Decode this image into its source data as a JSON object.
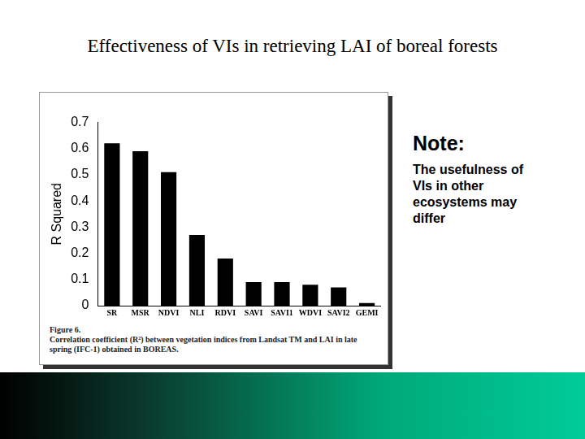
{
  "slide": {
    "title": "Effectiveness of VIs in retrieving LAI of boreal forests",
    "note_heading": "Note:",
    "note_text": "The usefulness of VIs in other ecosystems may differ"
  },
  "chart_data": {
    "type": "bar",
    "y_label": "R Squared",
    "categories": [
      "SR",
      "MSR",
      "NDVI",
      "NLI",
      "RDVI",
      "SAVI",
      "SAVI1",
      "WDVI",
      "SAVI2",
      "GEMI"
    ],
    "values": [
      0.62,
      0.59,
      0.51,
      0.27,
      0.18,
      0.09,
      0.09,
      0.08,
      0.07,
      0.01
    ],
    "color": "#000000",
    "ylim": [
      0,
      0.7
    ],
    "yticks": [
      0,
      0.1,
      0.2,
      0.3,
      0.4,
      0.5,
      0.6,
      0.7
    ],
    "grid": false,
    "caption": [
      "Figure 6.",
      "Correlation coefficient (R²) between vegetation indices from Landsat TM and LAI in late spring (IFC-1) obtained in BOREAS."
    ]
  }
}
